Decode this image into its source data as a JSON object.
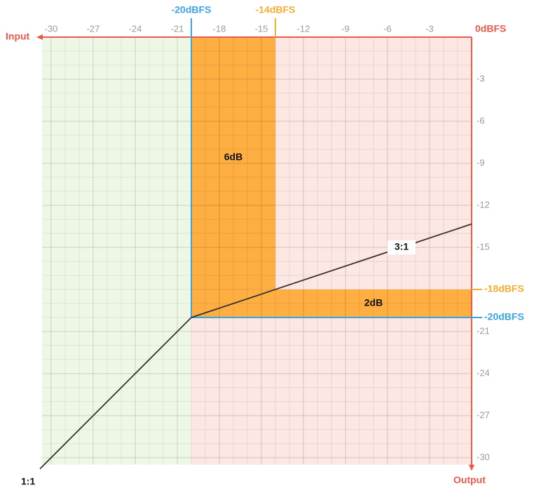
{
  "chart_data": {
    "type": "line",
    "x_label": "Input",
    "y_label": "Output",
    "axis_color": "#e8594a",
    "xlim": [
      -30.65,
      0
    ],
    "ylim": [
      -30.5,
      0
    ],
    "xticks": [
      -30,
      -27,
      -24,
      -21,
      -18,
      -15,
      -12,
      -9,
      -6,
      -3
    ],
    "yticks": [
      -3,
      -6,
      -9,
      -12,
      -15,
      -21,
      -24,
      -27,
      -30
    ],
    "origin_label": {
      "value": 0,
      "label": "0dBFS"
    },
    "minor_grid_step": 1,
    "zone_colors": [
      "#eef7e6",
      "#fde7e3"
    ],
    "x_markers": [
      {
        "value": -20,
        "label": "-20dBFS",
        "color": "#3aa3e3"
      },
      {
        "value": -14,
        "label": "-14dBFS",
        "color": "#f5ad32"
      }
    ],
    "y_markers": [
      {
        "value": -18,
        "label": "-18dBFS",
        "color": "#f5ad32"
      },
      {
        "value": -20,
        "label": "-20dBFS",
        "color": "#3aa3e3"
      }
    ],
    "bands": [
      {
        "x": [
          -20,
          -14
        ],
        "y": [
          -20,
          0
        ],
        "label": "6dB",
        "color": "#ffae42"
      },
      {
        "x": [
          -14,
          0
        ],
        "y": [
          -20,
          -18
        ],
        "label": "2dB",
        "color": "#ffae42"
      }
    ],
    "series": [
      {
        "name": "1:1",
        "color": "#333333",
        "x": [
          -30.8,
          -20
        ],
        "values": [
          -30.8,
          -20
        ]
      },
      {
        "name": "3:1",
        "color": "#333333",
        "x": [
          -20,
          0
        ],
        "values": [
          -20,
          -13.33
        ]
      }
    ]
  }
}
